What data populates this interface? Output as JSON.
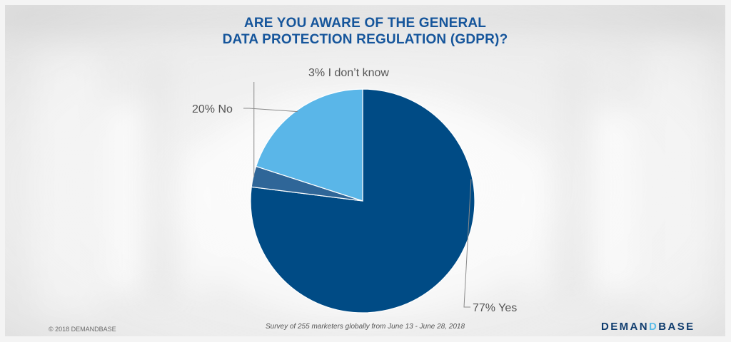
{
  "title_lines": [
    "ARE YOU AWARE OF THE GENERAL",
    "DATA PROTECTION REGULATION (GDPR)?"
  ],
  "footer": {
    "copyright": "© 2018 DEMANDBASE",
    "survey_note": "Survey of 255 marketers globally from June 13 - June 28, 2018",
    "logo_text": "DEMANDBASE"
  },
  "chart_data": {
    "type": "pie",
    "title": "ARE YOU AWARE OF THE GENERAL DATA PROTECTION REGULATION (GDPR)?",
    "slices": [
      {
        "label": "Yes",
        "value": 77,
        "text": "77% Yes",
        "color": "#004b85"
      },
      {
        "label": "I don't know",
        "value": 3,
        "text": "3% I don’t know",
        "color": "#2f6698"
      },
      {
        "label": "No",
        "value": 20,
        "text": "20%  No",
        "color": "#5ab6e8"
      }
    ],
    "legend": "none",
    "data_labels": "outside with leader lines"
  }
}
